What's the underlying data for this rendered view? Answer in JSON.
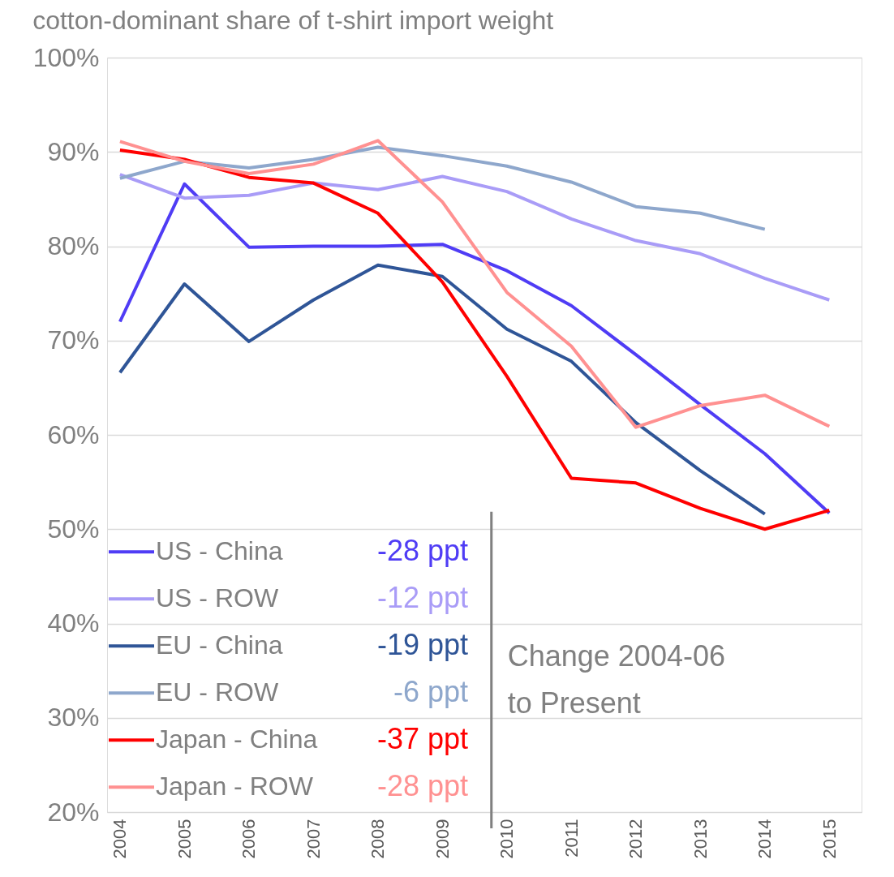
{
  "chart_data": {
    "type": "line",
    "title": "cotton-dominant share of t-shirt import weight",
    "x": [
      2004,
      2005,
      2006,
      2007,
      2008,
      2009,
      2010,
      2011,
      2012,
      2013,
      2014,
      2015
    ],
    "xlim": [
      2003.8,
      2015.5
    ],
    "xticks": [
      2004,
      2005,
      2006,
      2007,
      2008,
      2009,
      2010,
      2011,
      2012,
      2013,
      2014,
      2015
    ],
    "ylim": [
      20,
      100
    ],
    "yticks": [
      {
        "value": 20,
        "label": "20%"
      },
      {
        "value": 30,
        "label": "30%"
      },
      {
        "value": 40,
        "label": "40%"
      },
      {
        "value": 50,
        "label": "50%"
      },
      {
        "value": 60,
        "label": "60%"
      },
      {
        "value": 70,
        "label": "70%"
      },
      {
        "value": 80,
        "label": "80%"
      },
      {
        "value": 90,
        "label": "90%"
      },
      {
        "value": 100,
        "label": "100%"
      }
    ],
    "grid": "y",
    "legend": "bottom left",
    "line_style": "solid",
    "series": [
      {
        "name": "US - China",
        "color": "#4f3cf5",
        "values": [
          72.0,
          86.6,
          79.9,
          80.0,
          80.0,
          80.2,
          77.4,
          73.7,
          68.5,
          63.2,
          58.0,
          51.7
        ]
      },
      {
        "name": "US - ROW",
        "color": "#a99cf7",
        "values": [
          87.6,
          85.1,
          85.4,
          86.7,
          86.0,
          87.4,
          85.8,
          82.9,
          80.6,
          79.2,
          76.6,
          74.3
        ]
      },
      {
        "name": "EU - China",
        "color": "#2f5597",
        "values": [
          66.6,
          76.0,
          69.9,
          74.3,
          78.0,
          76.8,
          71.2,
          67.8,
          61.3,
          56.2,
          51.6,
          null
        ]
      },
      {
        "name": "EU - ROW",
        "color": "#8ea7cc",
        "values": [
          87.2,
          89.0,
          88.3,
          89.2,
          90.5,
          89.6,
          88.5,
          86.8,
          84.2,
          83.5,
          81.8,
          null
        ]
      },
      {
        "name": "Japan - China",
        "color": "#ff0000",
        "values": [
          90.2,
          89.2,
          87.3,
          86.7,
          83.5,
          76.2,
          66.2,
          55.4,
          54.9,
          52.2,
          50.0,
          52.0
        ]
      },
      {
        "name": "Japan - ROW",
        "color": "#ff9191",
        "values": [
          91.1,
          89.0,
          87.7,
          88.7,
          91.2,
          84.7,
          75.1,
          69.4,
          60.8,
          63.1,
          64.2,
          60.9
        ]
      }
    ],
    "annotations": [
      "-28 ppt",
      "-12 ppt",
      "-19 ppt",
      "-6 ppt",
      "-37 ppt",
      "-28 ppt"
    ],
    "ref_lines": [
      {
        "axis": "x",
        "value": 2009.76,
        "label": "Change 2004-06 to Present",
        "color": "#808080"
      }
    ]
  }
}
